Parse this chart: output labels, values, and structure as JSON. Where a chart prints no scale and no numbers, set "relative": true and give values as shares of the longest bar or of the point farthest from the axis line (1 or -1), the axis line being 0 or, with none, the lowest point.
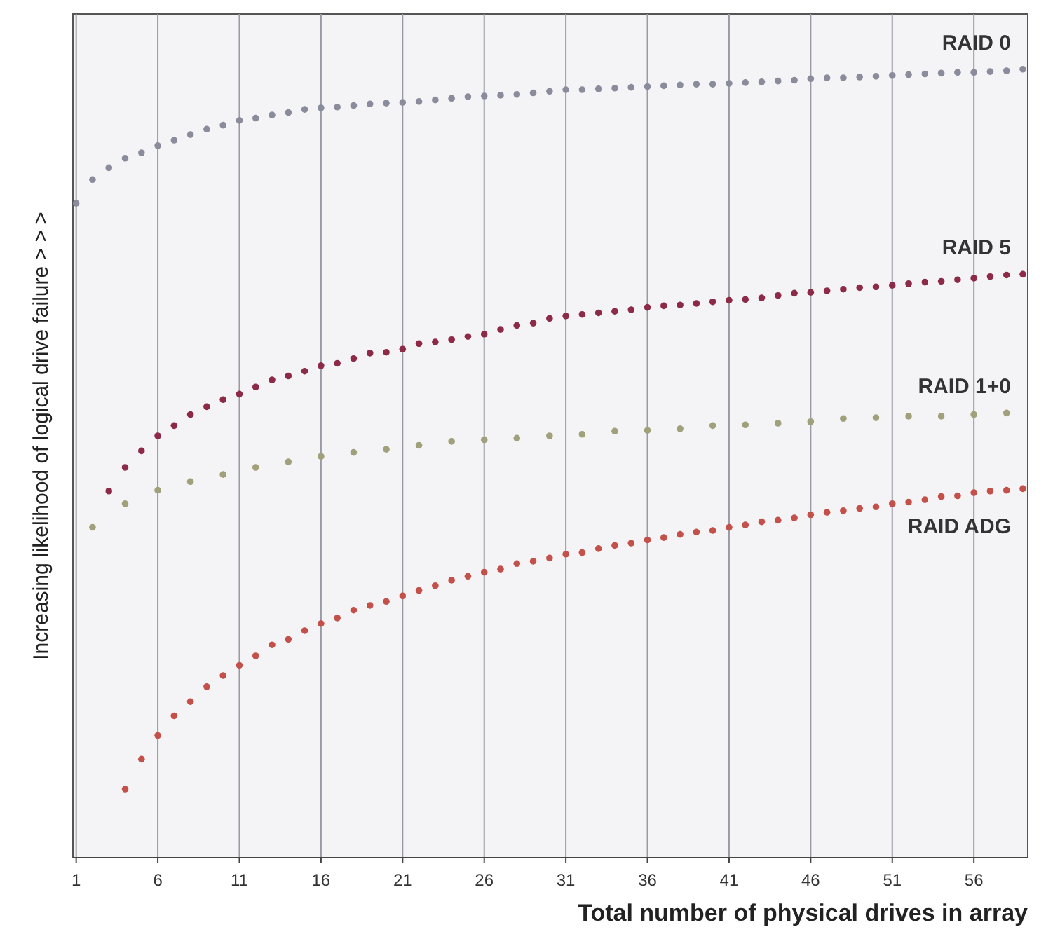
{
  "chart_data": {
    "type": "scatter",
    "relative": true,
    "xlabel": "Total number of physical drives in array",
    "ylabel": "Increasing likelihood of logical drive failure > > >",
    "xlim": [
      0.8,
      59.3
    ],
    "xticks": [
      1,
      6,
      11,
      16,
      21,
      26,
      31,
      36,
      41,
      46,
      51,
      56
    ],
    "grid": "x",
    "marker": "circle",
    "series": [
      {
        "name": "RAID 0",
        "color": "#8a8c9c",
        "x": [
          1,
          2,
          3,
          4,
          5,
          6,
          7,
          8,
          9,
          10,
          11,
          12,
          13,
          14,
          15,
          16,
          17,
          18,
          19,
          20,
          21,
          22,
          23,
          24,
          25,
          26,
          27,
          28,
          29,
          30,
          31,
          32,
          33,
          34,
          35,
          36,
          37,
          38,
          39,
          40,
          41,
          42,
          43,
          44,
          45,
          46,
          47,
          48,
          49,
          50,
          51,
          52,
          53,
          54,
          55,
          56,
          57,
          58,
          59
        ],
        "values": [
          0.83,
          0.86,
          0.875,
          0.887,
          0.894,
          0.903,
          0.91,
          0.917,
          0.924,
          0.929,
          0.935,
          0.938,
          0.942,
          0.945,
          0.949,
          0.951,
          0.952,
          0.954,
          0.956,
          0.957,
          0.958,
          0.959,
          0.961,
          0.963,
          0.965,
          0.966,
          0.967,
          0.968,
          0.97,
          0.972,
          0.974,
          0.974,
          0.975,
          0.976,
          0.977,
          0.978,
          0.979,
          0.98,
          0.981,
          0.981,
          0.982,
          0.983,
          0.984,
          0.985,
          0.986,
          0.988,
          0.989,
          0.989,
          0.99,
          0.991,
          0.992,
          0.993,
          0.994,
          0.995,
          0.996,
          0.996,
          0.997,
          0.998,
          1
        ]
      },
      {
        "name": "RAID 5",
        "color": "#8c2a48",
        "x": [
          3,
          4,
          5,
          6,
          7,
          8,
          9,
          10,
          11,
          12,
          13,
          14,
          15,
          16,
          17,
          18,
          19,
          20,
          21,
          22,
          23,
          24,
          25,
          26,
          27,
          28,
          29,
          30,
          31,
          32,
          33,
          34,
          35,
          36,
          37,
          38,
          39,
          40,
          41,
          42,
          43,
          44,
          45,
          46,
          47,
          48,
          49,
          50,
          51,
          52,
          53,
          54,
          55,
          56,
          57,
          58,
          59
        ],
        "values": [
          0.465,
          0.495,
          0.516,
          0.535,
          0.548,
          0.562,
          0.572,
          0.581,
          0.588,
          0.597,
          0.606,
          0.611,
          0.617,
          0.624,
          0.627,
          0.633,
          0.64,
          0.641,
          0.645,
          0.652,
          0.654,
          0.657,
          0.661,
          0.664,
          0.67,
          0.675,
          0.678,
          0.684,
          0.687,
          0.689,
          0.691,
          0.693,
          0.695,
          0.698,
          0.7,
          0.701,
          0.703,
          0.705,
          0.707,
          0.708,
          0.71,
          0.713,
          0.716,
          0.717,
          0.719,
          0.721,
          0.723,
          0.724,
          0.726,
          0.728,
          0.73,
          0.731,
          0.733,
          0.735,
          0.737,
          0.739,
          0.74
        ]
      },
      {
        "name": "RAID 1+0",
        "color": "#a0a07a",
        "x": [
          2,
          4,
          6,
          8,
          10,
          12,
          14,
          16,
          18,
          20,
          22,
          24,
          26,
          28,
          30,
          32,
          34,
          36,
          38,
          40,
          42,
          44,
          46,
          48,
          50,
          52,
          54,
          56,
          58
        ],
        "values": [
          0.419,
          0.449,
          0.466,
          0.477,
          0.486,
          0.495,
          0.502,
          0.509,
          0.514,
          0.518,
          0.523,
          0.528,
          0.53,
          0.532,
          0.535,
          0.537,
          0.541,
          0.542,
          0.544,
          0.548,
          0.549,
          0.551,
          0.553,
          0.557,
          0.558,
          0.56,
          0.56,
          0.562,
          0.564
        ]
      },
      {
        "name": "RAID ADG",
        "color": "#c4504a",
        "x": [
          4,
          5,
          6,
          7,
          8,
          9,
          10,
          11,
          12,
          13,
          14,
          15,
          16,
          17,
          18,
          19,
          20,
          21,
          22,
          23,
          24,
          25,
          26,
          27,
          28,
          29,
          30,
          31,
          32,
          33,
          34,
          35,
          36,
          37,
          38,
          39,
          40,
          41,
          42,
          43,
          44,
          45,
          46,
          47,
          48,
          49,
          50,
          51,
          52,
          53,
          54,
          55,
          56,
          57,
          58,
          59
        ],
        "values": [
          0.087,
          0.125,
          0.155,
          0.18,
          0.198,
          0.217,
          0.231,
          0.244,
          0.256,
          0.27,
          0.277,
          0.288,
          0.297,
          0.304,
          0.314,
          0.32,
          0.325,
          0.332,
          0.339,
          0.345,
          0.352,
          0.357,
          0.362,
          0.366,
          0.373,
          0.376,
          0.38,
          0.385,
          0.387,
          0.392,
          0.396,
          0.399,
          0.403,
          0.406,
          0.41,
          0.413,
          0.415,
          0.419,
          0.422,
          0.426,
          0.428,
          0.431,
          0.435,
          0.438,
          0.44,
          0.443,
          0.445,
          0.449,
          0.451,
          0.454,
          0.458,
          0.459,
          0.463,
          0.465,
          0.466,
          0.468
        ]
      }
    ]
  }
}
